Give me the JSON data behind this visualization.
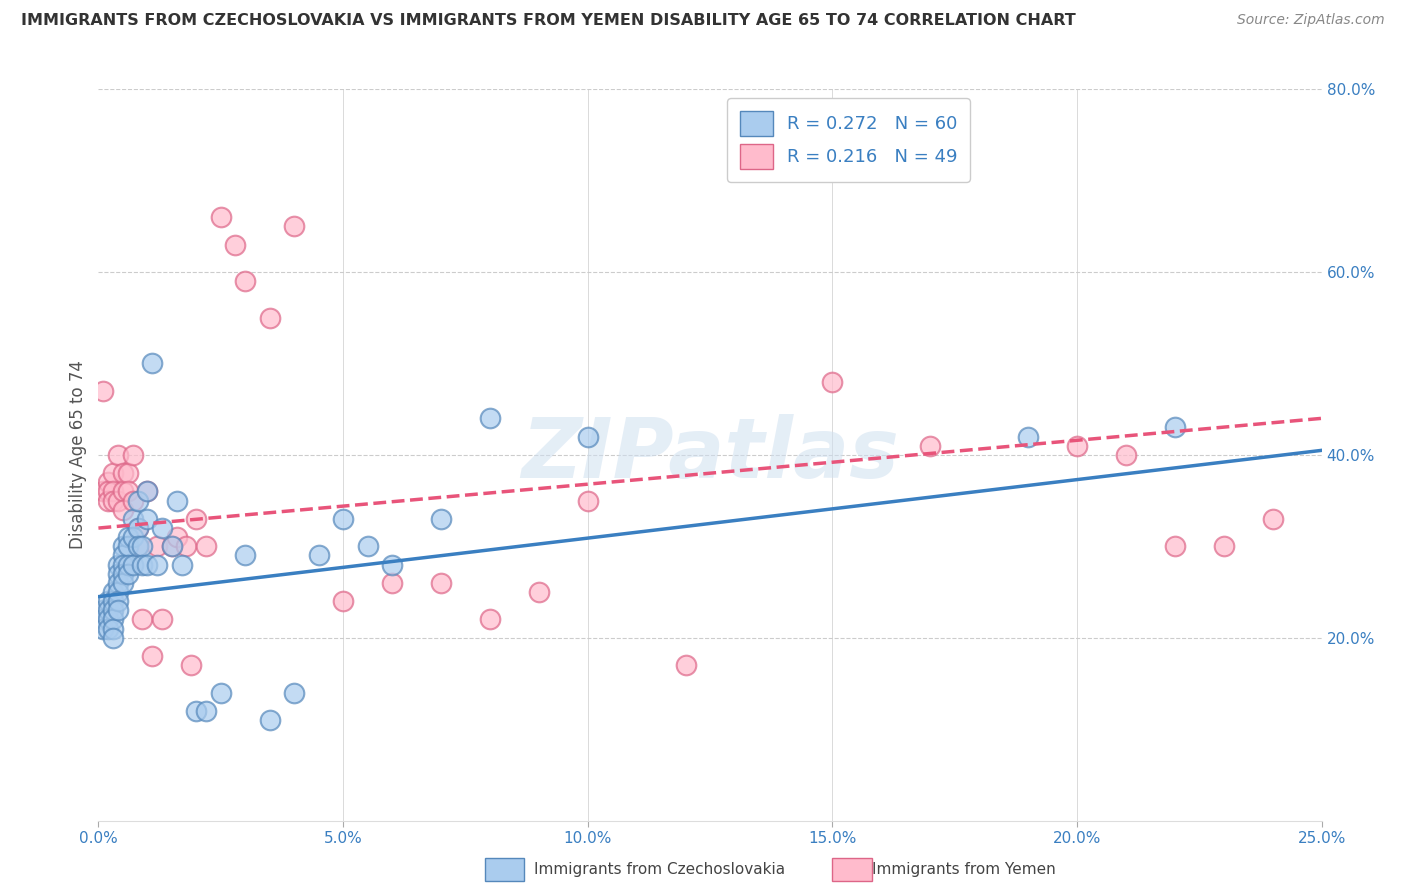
{
  "title": "IMMIGRANTS FROM CZECHOSLOVAKIA VS IMMIGRANTS FROM YEMEN DISABILITY AGE 65 TO 74 CORRELATION CHART",
  "source": "Source: ZipAtlas.com",
  "ylabel": "Disability Age 65 to 74",
  "xlim": [
    0.0,
    0.25
  ],
  "ylim": [
    0.0,
    0.8
  ],
  "xticks": [
    0.0,
    0.05,
    0.1,
    0.15,
    0.2,
    0.25
  ],
  "xtick_labels": [
    "0.0%",
    "5.0%",
    "10.0%",
    "15.0%",
    "20.0%",
    "25.0%"
  ],
  "yticks_right": [
    0.2,
    0.4,
    0.6,
    0.8
  ],
  "ytick_labels_right": [
    "20.0%",
    "40.0%",
    "60.0%",
    "80.0%"
  ],
  "legend_entries": [
    {
      "label": "R = 0.272   N = 60",
      "face": "#aaccee",
      "edge": "#5588bb"
    },
    {
      "label": "R = 0.216   N = 49",
      "face": "#ffbbcc",
      "edge": "#dd6688"
    }
  ],
  "watermark": "ZIPatlas",
  "background_color": "#ffffff",
  "grid_color": "#cccccc",
  "czech_face": "#aaccee",
  "czech_edge": "#5588bb",
  "yemen_face": "#ffbbcc",
  "yemen_edge": "#dd6688",
  "czech_line_color": "#3a7fc1",
  "yemen_line_color": "#e8547a",
  "axis_label_color": "#3a7fc1",
  "title_color": "#333333",
  "source_color": "#888888",
  "ylabel_color": "#555555",
  "czech_scatter_x": [
    0.001,
    0.001,
    0.001,
    0.002,
    0.002,
    0.002,
    0.002,
    0.003,
    0.003,
    0.003,
    0.003,
    0.003,
    0.003,
    0.004,
    0.004,
    0.004,
    0.004,
    0.004,
    0.004,
    0.005,
    0.005,
    0.005,
    0.005,
    0.005,
    0.006,
    0.006,
    0.006,
    0.006,
    0.007,
    0.007,
    0.007,
    0.008,
    0.008,
    0.008,
    0.009,
    0.009,
    0.01,
    0.01,
    0.01,
    0.011,
    0.012,
    0.013,
    0.015,
    0.016,
    0.017,
    0.02,
    0.022,
    0.025,
    0.03,
    0.035,
    0.04,
    0.045,
    0.05,
    0.055,
    0.06,
    0.07,
    0.08,
    0.1,
    0.19,
    0.22
  ],
  "czech_scatter_y": [
    0.23,
    0.22,
    0.21,
    0.24,
    0.23,
    0.22,
    0.21,
    0.25,
    0.24,
    0.23,
    0.22,
    0.21,
    0.2,
    0.28,
    0.27,
    0.26,
    0.25,
    0.24,
    0.23,
    0.3,
    0.29,
    0.28,
    0.27,
    0.26,
    0.31,
    0.3,
    0.28,
    0.27,
    0.33,
    0.31,
    0.28,
    0.35,
    0.32,
    0.3,
    0.3,
    0.28,
    0.36,
    0.33,
    0.28,
    0.5,
    0.28,
    0.32,
    0.3,
    0.35,
    0.28,
    0.12,
    0.12,
    0.14,
    0.29,
    0.11,
    0.14,
    0.29,
    0.33,
    0.3,
    0.28,
    0.33,
    0.44,
    0.42,
    0.42,
    0.43
  ],
  "yemen_scatter_x": [
    0.001,
    0.001,
    0.002,
    0.002,
    0.002,
    0.003,
    0.003,
    0.003,
    0.004,
    0.004,
    0.005,
    0.005,
    0.005,
    0.006,
    0.006,
    0.007,
    0.007,
    0.008,
    0.008,
    0.009,
    0.01,
    0.011,
    0.012,
    0.013,
    0.015,
    0.016,
    0.018,
    0.019,
    0.02,
    0.022,
    0.025,
    0.028,
    0.03,
    0.035,
    0.04,
    0.05,
    0.06,
    0.07,
    0.08,
    0.09,
    0.1,
    0.12,
    0.15,
    0.17,
    0.2,
    0.21,
    0.22,
    0.23,
    0.24
  ],
  "yemen_scatter_y": [
    0.47,
    0.36,
    0.37,
    0.36,
    0.35,
    0.38,
    0.36,
    0.35,
    0.4,
    0.35,
    0.38,
    0.36,
    0.34,
    0.38,
    0.36,
    0.4,
    0.35,
    0.32,
    0.3,
    0.22,
    0.36,
    0.18,
    0.3,
    0.22,
    0.3,
    0.31,
    0.3,
    0.17,
    0.33,
    0.3,
    0.66,
    0.63,
    0.59,
    0.55,
    0.65,
    0.24,
    0.26,
    0.26,
    0.22,
    0.25,
    0.35,
    0.17,
    0.48,
    0.41,
    0.41,
    0.4,
    0.3,
    0.3,
    0.33
  ],
  "czech_line_x": [
    0.0,
    0.25
  ],
  "czech_line_y": [
    0.245,
    0.405
  ],
  "yemen_line_x": [
    0.0,
    0.25
  ],
  "yemen_line_y": [
    0.32,
    0.44
  ]
}
